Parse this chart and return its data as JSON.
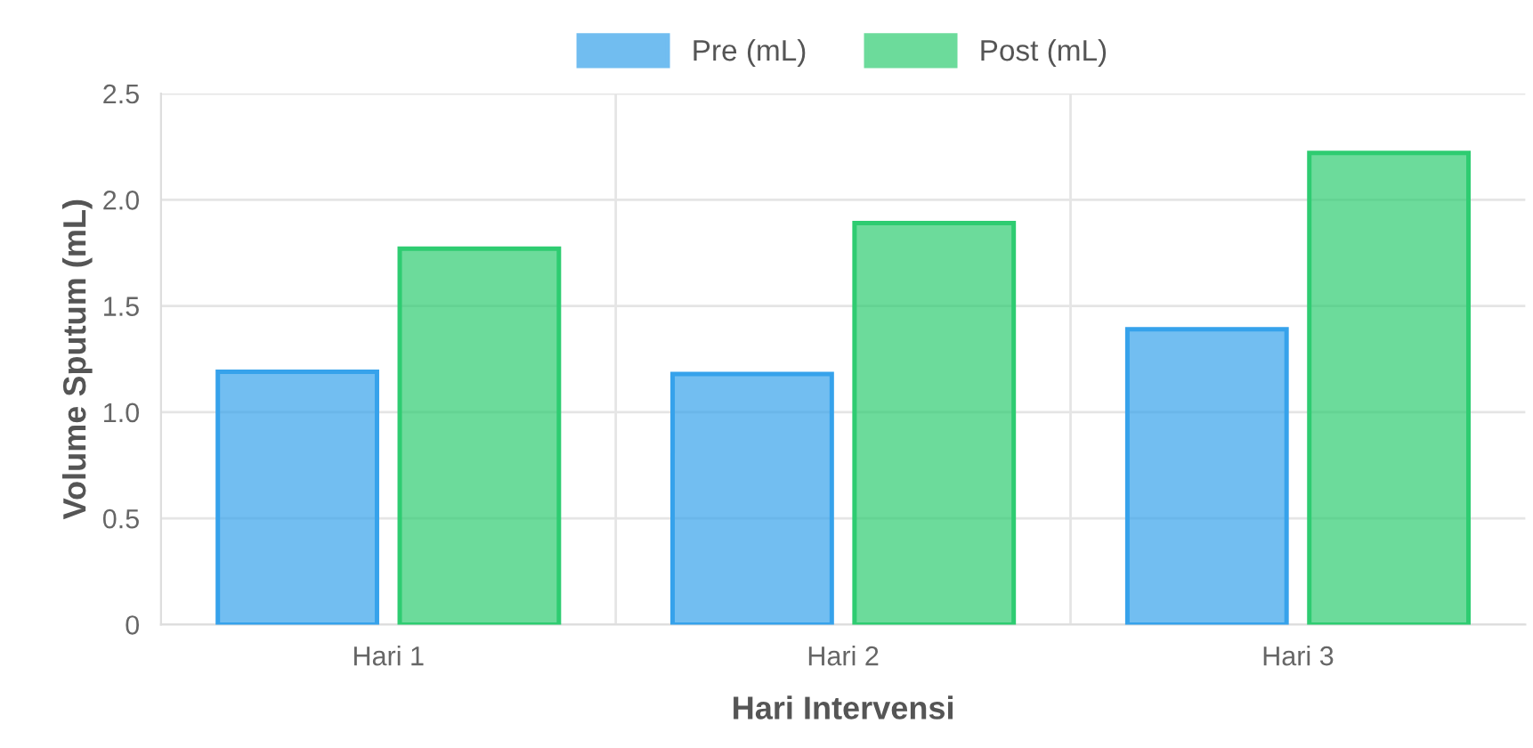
{
  "chart_data": {
    "type": "bar",
    "xlabel": "Hari Intervensi",
    "ylabel": "Volume Sputum (mL)",
    "categories": [
      "Hari 1",
      "Hari 2",
      "Hari 3"
    ],
    "series": [
      {
        "name": "Pre (mL)",
        "color": "#36a2eb",
        "values": [
          1.19,
          1.18,
          1.39
        ]
      },
      {
        "name": "Post (mL)",
        "color": "#2ecc71",
        "values": [
          1.77,
          1.89,
          2.22
        ]
      }
    ],
    "ylim": [
      0,
      2.5
    ],
    "yticks": [
      {
        "value": 0,
        "label": "0"
      },
      {
        "value": 0.5,
        "label": "0.5"
      },
      {
        "value": 1.0,
        "label": "1.0"
      },
      {
        "value": 1.5,
        "label": "1.5"
      },
      {
        "value": 2.0,
        "label": "2.0"
      },
      {
        "value": 2.5,
        "label": "2.5"
      }
    ],
    "grid": true,
    "legend": "top"
  }
}
